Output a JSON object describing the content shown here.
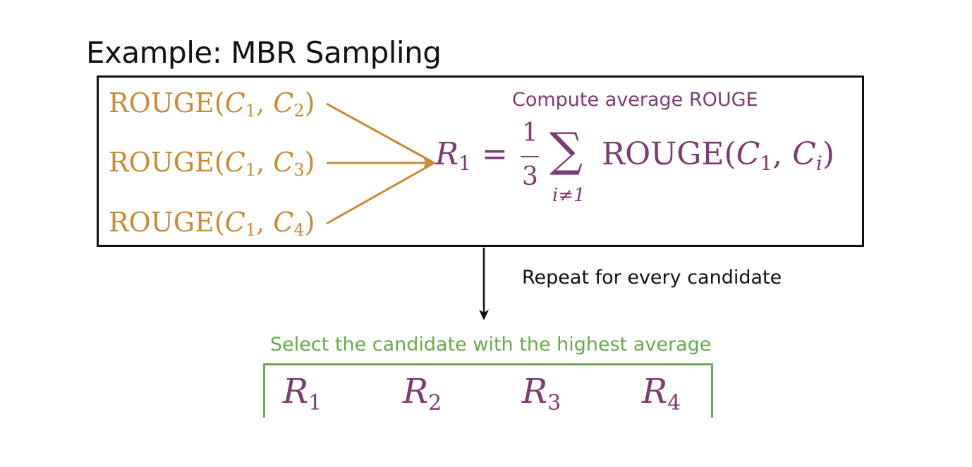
{
  "title": "Example: MBR Sampling",
  "rouge_pairs": [
    {
      "fn": "ROUGE(",
      "a": "C",
      "a_sub": "1",
      "sep": ", ",
      "b": "C",
      "b_sub": "2",
      "close": ")"
    },
    {
      "fn": "ROUGE(",
      "a": "C",
      "a_sub": "1",
      "sep": ", ",
      "b": "C",
      "b_sub": "3",
      "close": ")"
    },
    {
      "fn": "ROUGE(",
      "a": "C",
      "a_sub": "1",
      "sep": ", ",
      "b": "C",
      "b_sub": "4",
      "close": ")"
    }
  ],
  "compute_caption": "Compute average ROUGE",
  "formula": {
    "lhs": "R",
    "lhs_sub": "1",
    "equals": "=",
    "numerator": "1",
    "denominator": "3",
    "sum_symbol": "∑",
    "sum_index": "i≠1",
    "rhs_fn": "ROUGE(",
    "rhs_a": "C",
    "rhs_a_sub": "1",
    "rhs_sep": ", ",
    "rhs_b": "C",
    "rhs_b_sub": "i",
    "rhs_close": ")"
  },
  "repeat_label": "Repeat for every candidate",
  "select_label": "Select the candidate with the highest average",
  "candidates": [
    {
      "symbol": "R",
      "sub": "1"
    },
    {
      "symbol": "R",
      "sub": "2"
    },
    {
      "symbol": "R",
      "sub": "3"
    },
    {
      "symbol": "R",
      "sub": "4"
    }
  ],
  "colors": {
    "rouge": "#c88a32",
    "formula": "#7d3a73",
    "select": "#6aa84f",
    "text": "#111111"
  }
}
